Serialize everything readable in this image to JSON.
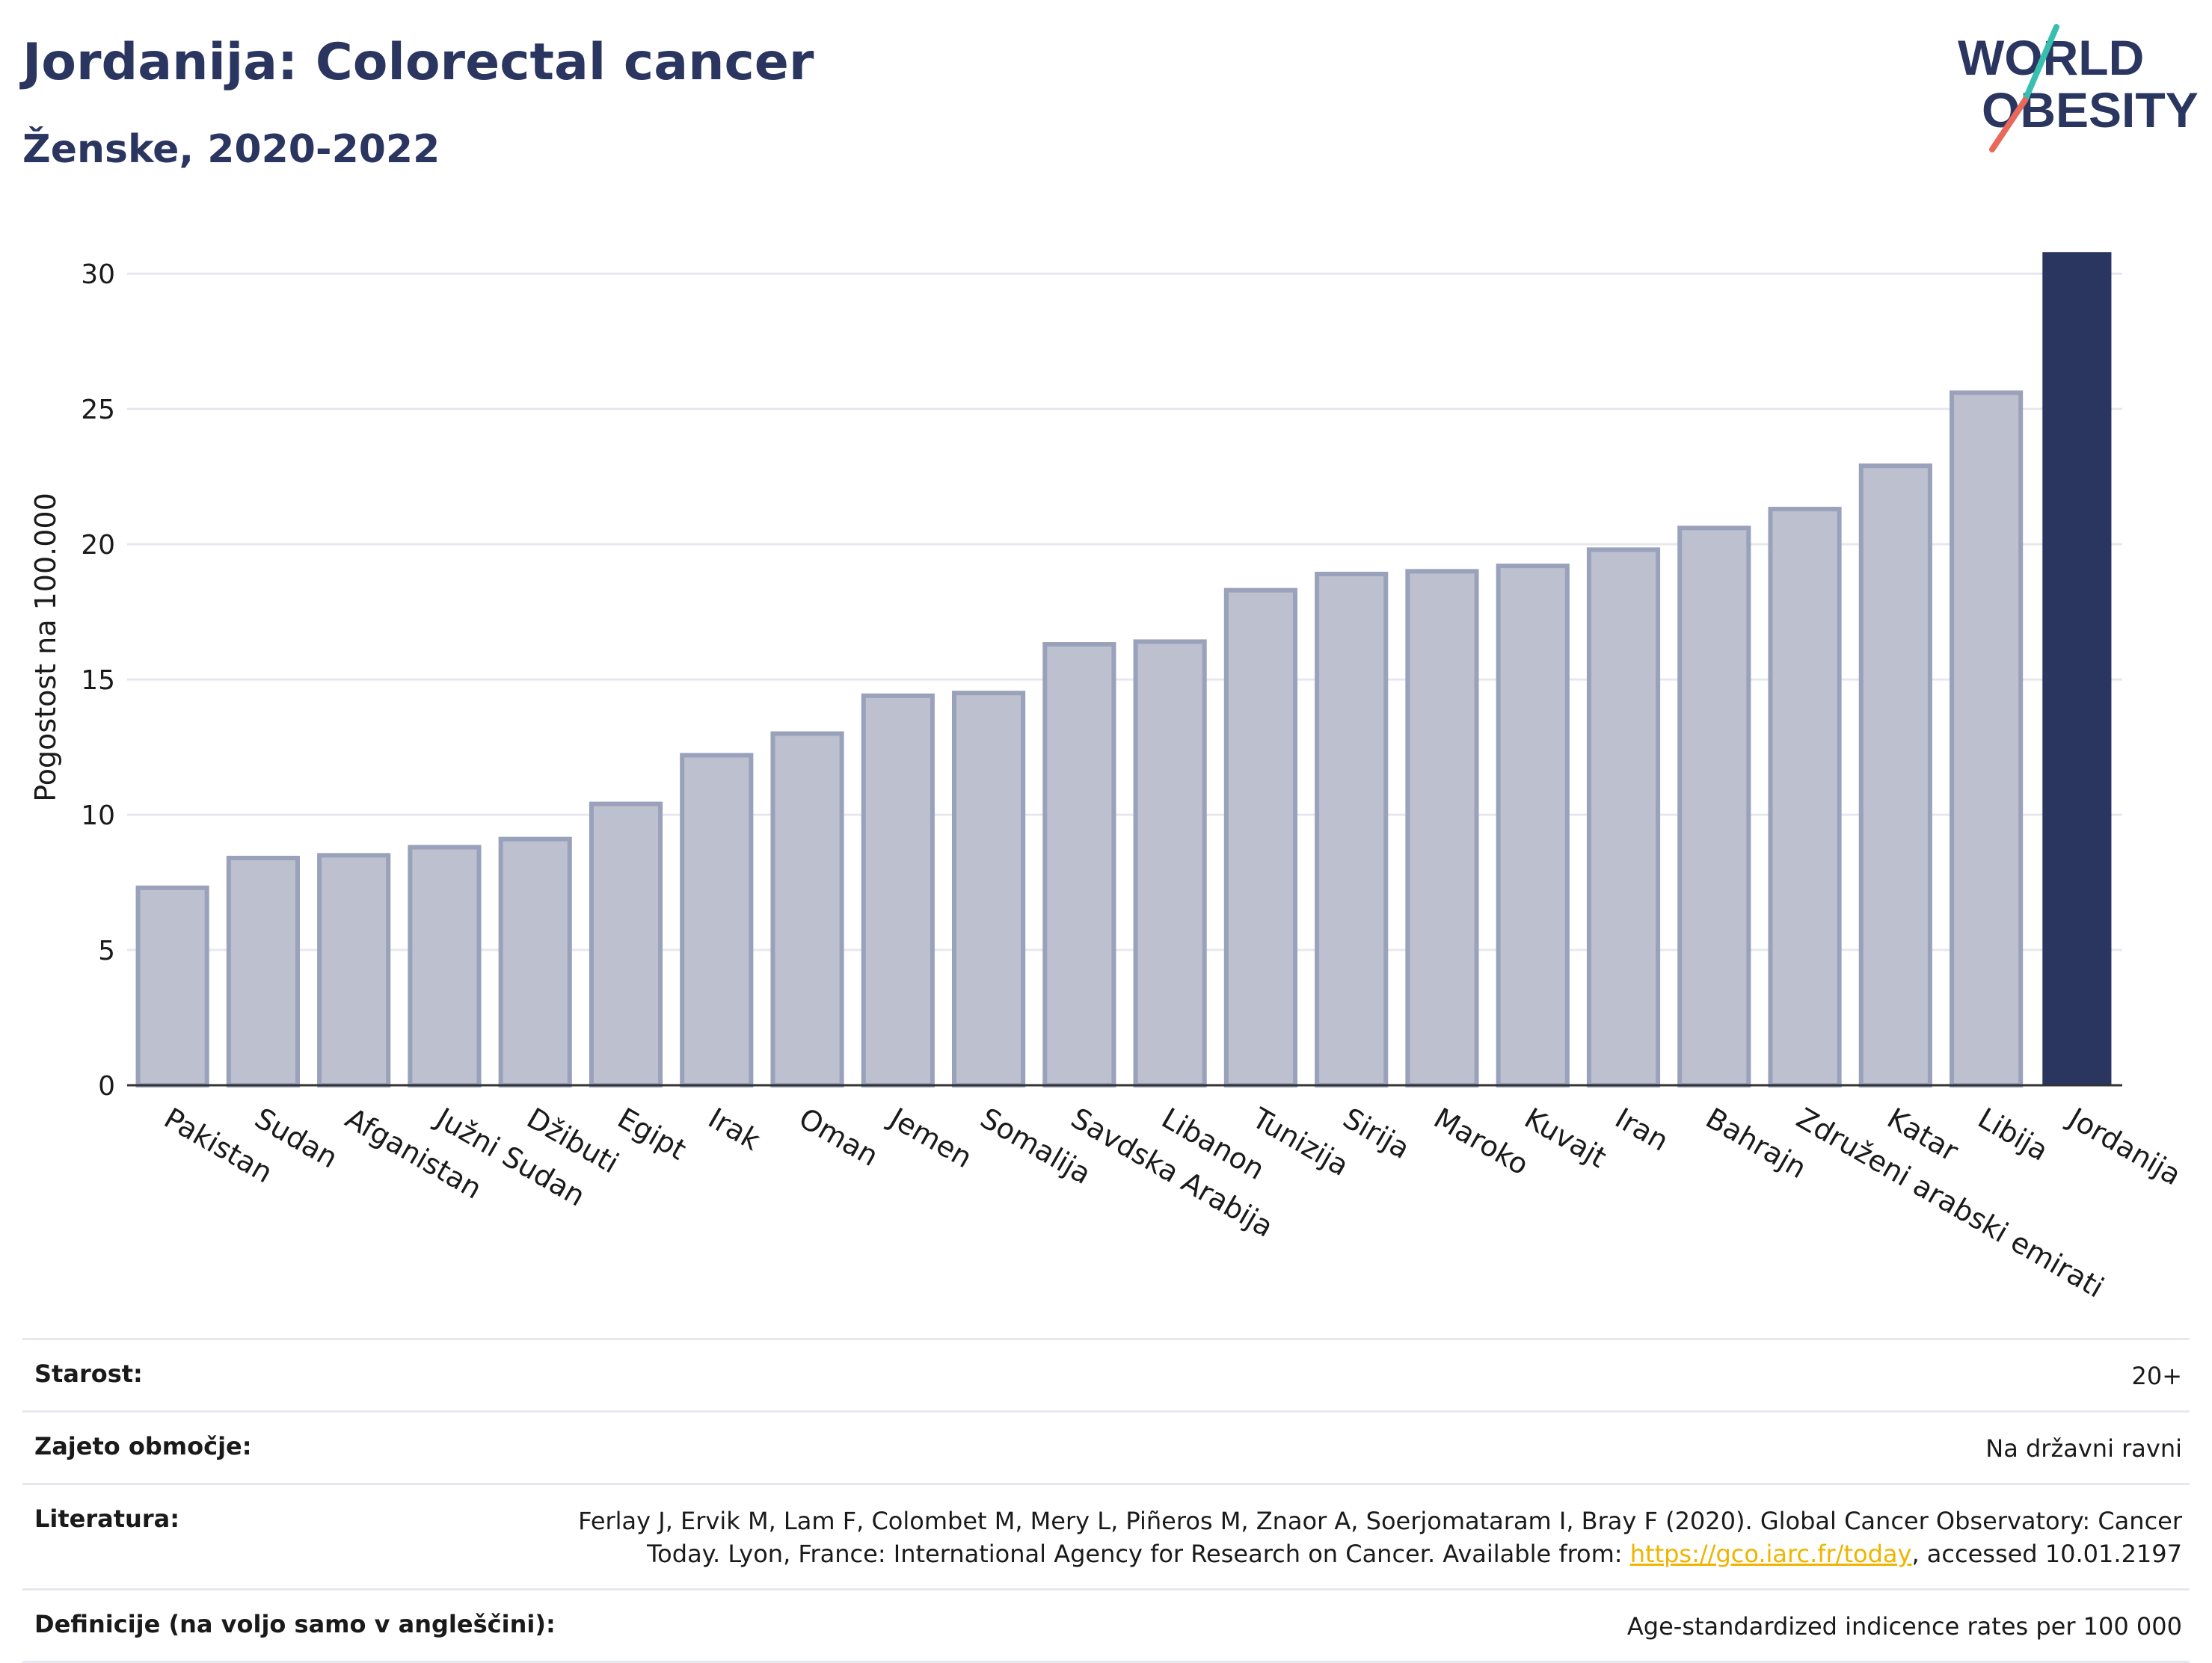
{
  "header": {
    "title": "Jordanija: Colorectal cancer",
    "subtitle": "Ženske, 2020-2022",
    "logo_line1": "WORLD",
    "logo_line2": "OBESITY"
  },
  "chart_data": {
    "type": "bar",
    "ylabel": "Pogostost na 100.000",
    "xlabel": "",
    "ylim": [
      0,
      31
    ],
    "yticks": [
      0,
      5,
      10,
      15,
      20,
      25,
      30
    ],
    "grid": true,
    "categories": [
      "Pakistan",
      "Sudan",
      "Afganistan",
      "Južni Sudan",
      "Džibuti",
      "Egipt",
      "Irak",
      "Oman",
      "Jemen",
      "Somalija",
      "Savdska Arabija",
      "Libanon",
      "Tunizija",
      "Sirija",
      "Maroko",
      "Kuvajt",
      "Iran",
      "Bahrajn",
      "Združeni arabski emirati",
      "Katar",
      "Libija",
      "Jordanija"
    ],
    "values": [
      7.3,
      8.4,
      8.5,
      8.8,
      9.1,
      10.4,
      12.2,
      13.0,
      14.4,
      14.5,
      16.3,
      16.4,
      18.3,
      18.9,
      19.0,
      19.2,
      19.8,
      20.6,
      21.3,
      22.9,
      25.6,
      30.8
    ],
    "highlight": "Jordanija",
    "colors": {
      "bar": "#bcc0cf",
      "bar_border": "#9aa1ba",
      "highlight": "#2a3560",
      "grid": "#e6e8ef",
      "axis": "#333333"
    }
  },
  "meta": {
    "age_label": "Starost:",
    "age_value": "20+",
    "area_label": "Zajeto območje:",
    "area_value": "Na državni ravni",
    "lit_label": "Literatura:",
    "lit_value_pre": "Ferlay J, Ervik M, Lam F, Colombet M, Mery L, Piñeros M, Znaor A, Soerjomataram I, Bray F (2020). Global Cancer Observatory: Cancer Today. Lyon, France: International Agency for Research on Cancer. Available from: ",
    "lit_link": "https://gco.iarc.fr/today",
    "lit_value_post": ", accessed 10.01.2197",
    "def_label": "Definicije (na voljo samo v angleščini):",
    "def_value": "Age-standardized indicence rates per 100 000"
  }
}
